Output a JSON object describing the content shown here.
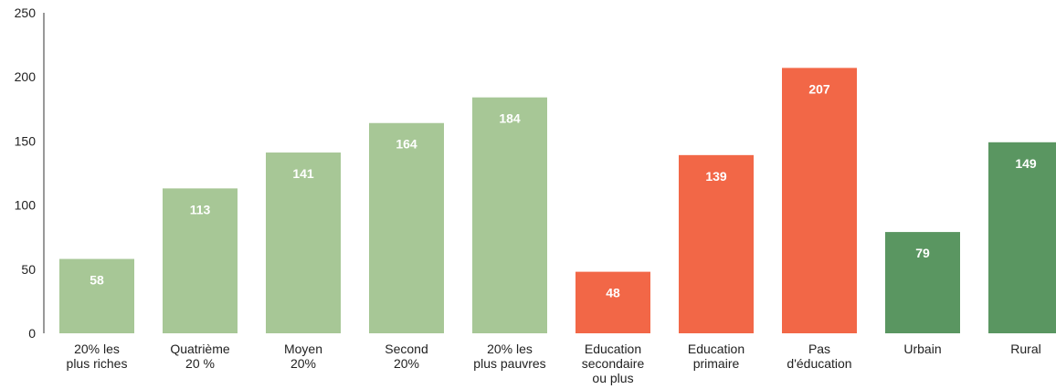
{
  "chart_data": {
    "type": "bar",
    "title": "",
    "xlabel": "",
    "ylabel": "",
    "ylim": [
      0,
      250
    ],
    "yticks": [
      0,
      50,
      100,
      150,
      200,
      250
    ],
    "grid": false,
    "legend": "none",
    "categories": [
      [
        "20% les",
        "plus riches"
      ],
      [
        "Quatrième",
        "20 %"
      ],
      [
        "Moyen",
        "20%"
      ],
      [
        "Second",
        "20%"
      ],
      [
        "20% les",
        "plus pauvres"
      ],
      [
        "Education",
        "secondaire",
        "ou plus"
      ],
      [
        "Education",
        "primaire"
      ],
      [
        "Pas",
        "d'éducation"
      ],
      [
        "Urbain"
      ],
      [
        "Rural"
      ]
    ],
    "values": [
      58,
      113,
      141,
      164,
      184,
      48,
      139,
      207,
      79,
      149
    ],
    "colors": [
      "#a7c796",
      "#a7c796",
      "#a7c796",
      "#a7c796",
      "#a7c796",
      "#f26747",
      "#f26747",
      "#f26747",
      "#5a9661",
      "#5a9661"
    ]
  }
}
